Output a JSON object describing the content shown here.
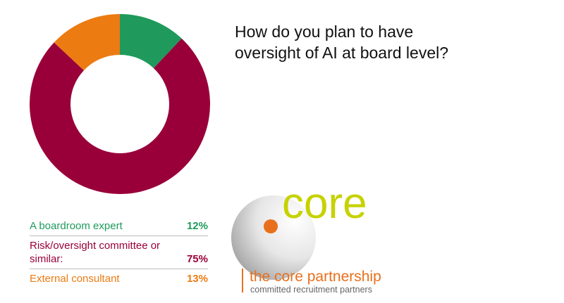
{
  "chart_data": {
    "type": "pie",
    "donut": true,
    "title": "How do you plan to have oversight of AI at board level?",
    "categories": [
      "A boardroom expert",
      "Risk/oversight committee or similar:",
      "External consultant"
    ],
    "values": [
      12,
      75,
      13
    ],
    "value_labels": [
      "12%",
      "75%",
      "13%"
    ],
    "colors": [
      "#1f9a5c",
      "#990039",
      "#ec7b12"
    ]
  },
  "logo": {
    "wordmark": "core",
    "name": "the core partnership",
    "tagline": "committed recruitment partners"
  }
}
